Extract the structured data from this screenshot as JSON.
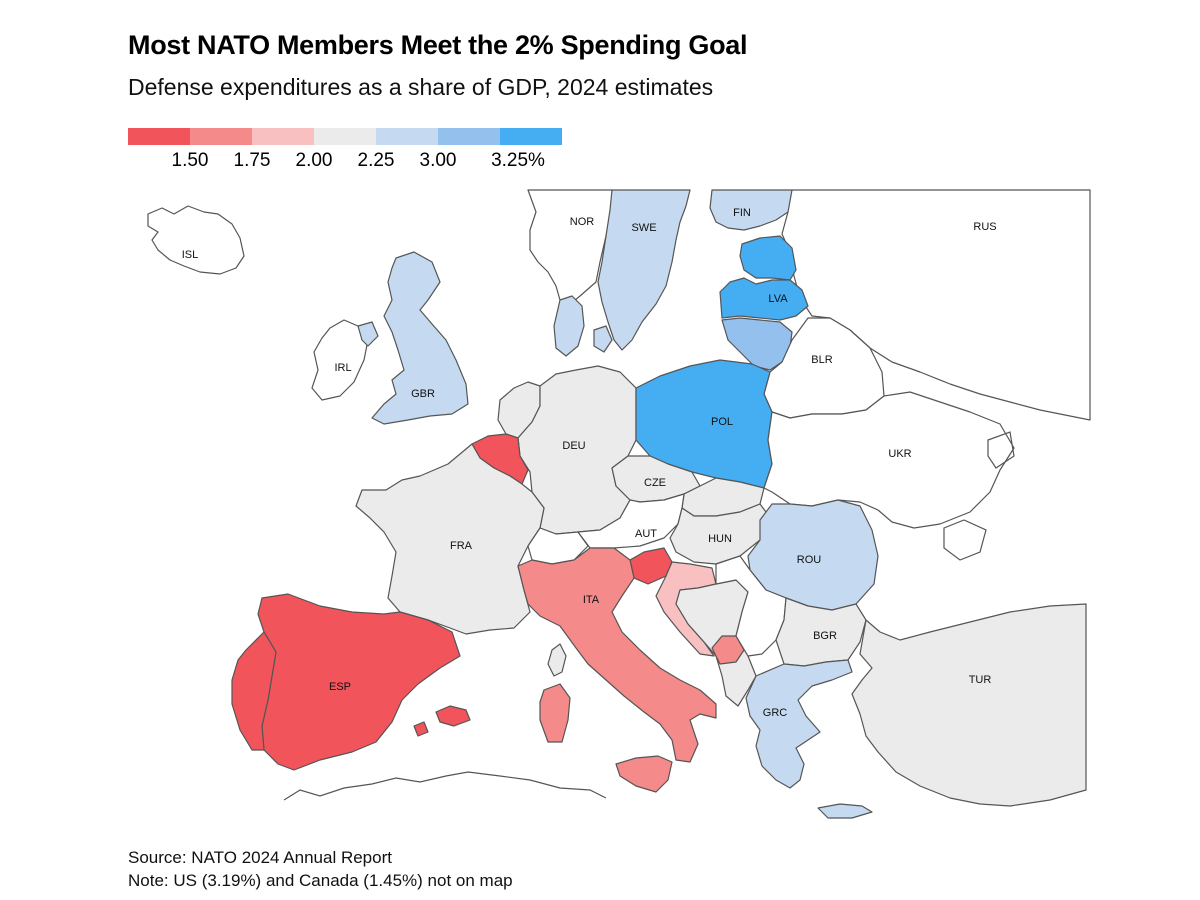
{
  "title": "Most NATO Members Meet the 2% Spending Goal",
  "subtitle": "Defense expenditures as a share of GDP, 2024 estimates",
  "legend": {
    "colors": [
      "#f2545c",
      "#f58a8a",
      "#f8c0c0",
      "#ebebeb",
      "#c5daf1",
      "#93c0ec",
      "#45adf2"
    ],
    "labels": [
      "1.50",
      "1.75",
      "2.00",
      "2.25",
      "3.00",
      "3.25%"
    ]
  },
  "countries": {
    "ISL": {
      "label": "ISL",
      "fill": "#ffffff"
    },
    "NOR": {
      "label": "NOR",
      "fill": "#ffffff"
    },
    "SWE": {
      "label": "SWE",
      "fill": "#c5daf1"
    },
    "FIN": {
      "label": "FIN",
      "fill": "#c5daf1"
    },
    "RUS": {
      "label": "RUS",
      "fill": "#ffffff"
    },
    "EST": {
      "label": "",
      "fill": "#45adf2"
    },
    "LVA": {
      "label": "LVA",
      "fill": "#45adf2"
    },
    "LTU": {
      "label": "",
      "fill": "#93c0ec"
    },
    "BLR": {
      "label": "BLR",
      "fill": "#ffffff"
    },
    "IRL": {
      "label": "IRL",
      "fill": "#ffffff"
    },
    "GBR": {
      "label": "GBR",
      "fill": "#c5daf1"
    },
    "DNK": {
      "label": "",
      "fill": "#c5daf1"
    },
    "NLD": {
      "label": "",
      "fill": "#ebebeb"
    },
    "BEL": {
      "label": "",
      "fill": "#f2545c"
    },
    "DEU": {
      "label": "DEU",
      "fill": "#ebebeb"
    },
    "POL": {
      "label": "POL",
      "fill": "#45adf2"
    },
    "UKR": {
      "label": "UKR",
      "fill": "#ffffff"
    },
    "CZE": {
      "label": "CZE",
      "fill": "#ebebeb"
    },
    "SVK": {
      "label": "",
      "fill": "#ebebeb"
    },
    "FRA": {
      "label": "FRA",
      "fill": "#ebebeb"
    },
    "CHE": {
      "label": "",
      "fill": "#ffffff"
    },
    "AUT": {
      "label": "AUT",
      "fill": "#ffffff"
    },
    "HUN": {
      "label": "HUN",
      "fill": "#ebebeb"
    },
    "ROU": {
      "label": "ROU",
      "fill": "#c5daf1"
    },
    "SVN": {
      "label": "",
      "fill": "#f2545c"
    },
    "HRV": {
      "label": "",
      "fill": "#f8c0c0"
    },
    "ITA": {
      "label": "ITA",
      "fill": "#f58a8a"
    },
    "ESP": {
      "label": "ESP",
      "fill": "#f2545c"
    },
    "PRT": {
      "label": "",
      "fill": "#f2545c"
    },
    "BGR": {
      "label": "BGR",
      "fill": "#ebebeb"
    },
    "GRC": {
      "label": "GRC",
      "fill": "#c5daf1"
    },
    "TUR": {
      "label": "TUR",
      "fill": "#ebebeb"
    },
    "BALKANS": {
      "label": "",
      "fill": "#ebebeb"
    },
    "MNE": {
      "label": "",
      "fill": "#f58a8a"
    },
    "SRB": {
      "label": "",
      "fill": "#ffffff"
    }
  },
  "source": "Source: NATO 2024 Annual Report",
  "note": "Note: US (3.19%) and Canada (1.45%) not on map"
}
